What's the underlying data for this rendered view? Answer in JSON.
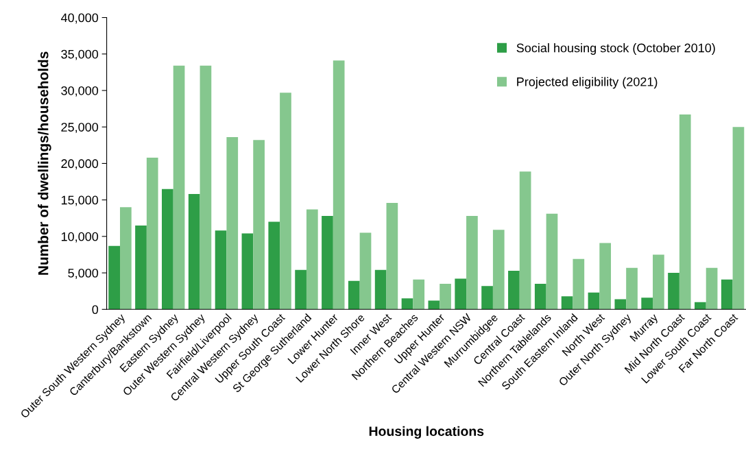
{
  "chart_data": {
    "type": "bar",
    "xlabel": "Housing locations",
    "ylabel": "Number of dwellings/households",
    "categories": [
      "Outer South Western Sydney",
      "Canterbury/Bankstown",
      "Eastern Sydney",
      "Outer Western Sydney",
      "Fairfield/Liverpool",
      "Central Western Sydney",
      "Upper South Coast",
      "St George Sutherland",
      "Lower Hunter",
      "Lower North Shore",
      "Inner West",
      "Northern Beaches",
      "Upper Hunter",
      "Central Western NSW",
      "Murrumbidgee",
      "Central Coast",
      "Northern Tablelands",
      "South Eastern Inland",
      "North West",
      "Outer North Sydney",
      "Murray",
      "Mid North Coast",
      "Lower South Coast",
      "Far North Coast"
    ],
    "series": [
      {
        "name": "Social housing stock (October 2010)",
        "color": "#2e9e47",
        "values": [
          8700,
          11500,
          16500,
          15800,
          10800,
          10400,
          12000,
          5400,
          12800,
          3900,
          5400,
          1500,
          1200,
          4200,
          3200,
          5300,
          3500,
          1800,
          2300,
          1400,
          1600,
          5000,
          1000,
          4100
        ]
      },
      {
        "name": "Projected eligibility (2021)",
        "color": "#85c78e",
        "values": [
          14000,
          20800,
          33400,
          33400,
          23600,
          23200,
          29700,
          13700,
          34100,
          10500,
          14600,
          4100,
          3500,
          12800,
          10900,
          18900,
          13100,
          6900,
          9100,
          5700,
          7500,
          26700,
          5700,
          25000
        ]
      }
    ],
    "ylim": [
      0,
      40000
    ],
    "yticks": [
      {
        "value": 0,
        "label": "0"
      },
      {
        "value": 5000,
        "label": "5,000"
      },
      {
        "value": 10000,
        "label": "10,000"
      },
      {
        "value": 15000,
        "label": "15,000"
      },
      {
        "value": 20000,
        "label": "20,000"
      },
      {
        "value": 25000,
        "label": "25,000"
      },
      {
        "value": 30000,
        "label": "30,000"
      },
      {
        "value": 35000,
        "label": "35,000"
      },
      {
        "value": 40000,
        "label": "40,000"
      }
    ],
    "grid": false,
    "legend": "top right"
  }
}
